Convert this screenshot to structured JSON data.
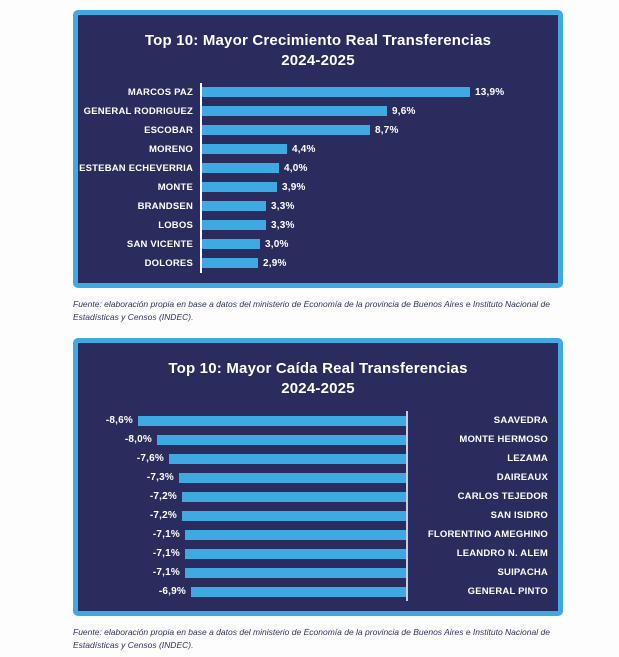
{
  "page": {
    "background": "#FDFDFE"
  },
  "colors": {
    "card_background": "#2B2C5E",
    "card_border": "#41A9E2",
    "bar_blue": "#3FA9E1",
    "axis_white": "#FFFFFF",
    "axis_gray": "#C9CDD9",
    "chart_text": "#FFFFFF",
    "source_text": "#30325F"
  },
  "source_note": "Fuente: elaboración propia en base a datos del ministerio de Economía de la provincia de Buenos Aires e Instituto Nacional de Estadísticas y Censos (INDEC).",
  "chart_data": [
    {
      "type": "bar",
      "orientation": "horizontal",
      "direction": "right",
      "title": "Top 10: Mayor Crecimiento Real Transferencias 2024-2025",
      "title_line1": "Top 10: Mayor Crecimiento Real Transferencias",
      "title_line2": "2024-2025",
      "categories": [
        "MARCOS PAZ",
        "GENERAL RODRIGUEZ",
        "ESCOBAR",
        "MORENO",
        "ESTEBAN ECHEVERRIA",
        "MONTE",
        "BRANDSEN",
        "LOBOS",
        "SAN VICENTE",
        "DOLORES"
      ],
      "values": [
        13.9,
        9.6,
        8.7,
        4.4,
        4.0,
        3.9,
        3.3,
        3.3,
        3.0,
        2.9
      ],
      "value_labels": [
        "13,9%",
        "9,6%",
        "8,7%",
        "4,4%",
        "4,0%",
        "3,9%",
        "3,3%",
        "3,3%",
        "3,0%",
        "2,9%"
      ],
      "unit": "%",
      "xlim": [
        0,
        13.9
      ],
      "grid": false,
      "legend": "none",
      "bar_color": "#3FA9E1",
      "plot_bg": "#2B2C5E",
      "axis_color": "#FFFFFF"
    },
    {
      "type": "bar",
      "orientation": "horizontal",
      "direction": "left",
      "title": "Top 10: Mayor Caída Real Transferencias 2024-2025",
      "title_line1": "Top 10: Mayor Caída Real Transferencias",
      "title_line2": "2024-2025",
      "categories": [
        "SAAVEDRA",
        "MONTE HERMOSO",
        "LEZAMA",
        "DAIREAUX",
        "CARLOS TEJEDOR",
        "SAN ISIDRO",
        "FLORENTINO AMEGHINO",
        "LEANDRO N. ALEM",
        "SUIPACHA",
        "GENERAL PINTO"
      ],
      "values": [
        -8.6,
        -8.0,
        -7.6,
        -7.3,
        -7.2,
        -7.2,
        -7.1,
        -7.1,
        -7.1,
        -6.9
      ],
      "value_labels": [
        "-8,6%",
        "-8,0%",
        "-7,6%",
        "-7,3%",
        "-7,2%",
        "-7,2%",
        "-7,1%",
        "-7,1%",
        "-7,1%",
        "-6,9%"
      ],
      "unit": "%",
      "xlim": [
        -8.6,
        0
      ],
      "grid": false,
      "legend": "none",
      "bar_color": "#3FA9E1",
      "plot_bg": "#2B2C5E",
      "axis_color": "#C9CDD9"
    }
  ]
}
